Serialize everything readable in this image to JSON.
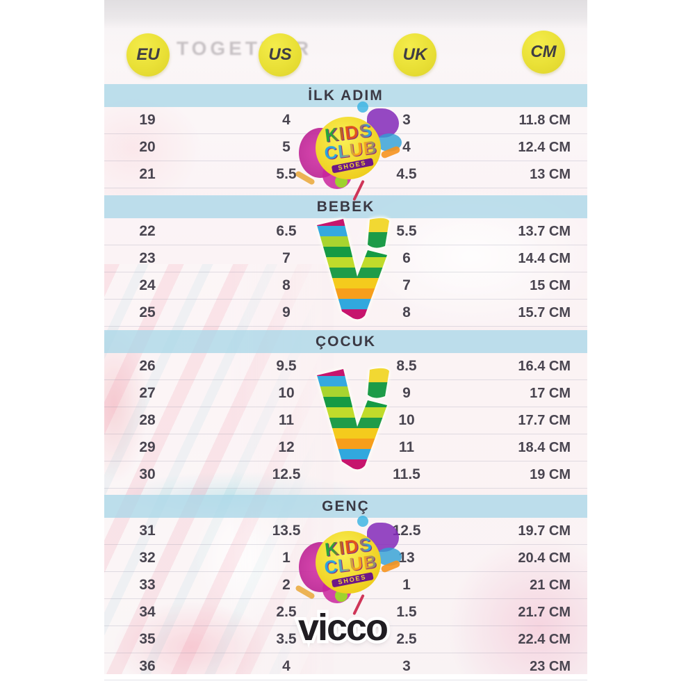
{
  "photo": {
    "background_text": "TOGETHER"
  },
  "table": {
    "columns": [
      "EU",
      "US",
      "UK",
      "CM"
    ],
    "sections": [
      {
        "id": "ilk-adim",
        "label": "İLK ADIM",
        "rows": [
          [
            "19",
            "4",
            "3",
            "11.8 CM"
          ],
          [
            "20",
            "5",
            "4",
            "12.4 CM"
          ],
          [
            "21",
            "5.5",
            "4.5",
            "13 CM"
          ]
        ]
      },
      {
        "id": "bebek",
        "label": "BEBEK",
        "rows": [
          [
            "22",
            "6.5",
            "5.5",
            "13.7 CM"
          ],
          [
            "23",
            "7",
            "6",
            "14.4 CM"
          ],
          [
            "24",
            "8",
            "7",
            "15 CM"
          ],
          [
            "25",
            "9",
            "8",
            "15.7 CM"
          ]
        ]
      },
      {
        "id": "cocuk",
        "label": "ÇOCUK",
        "rows": [
          [
            "26",
            "9.5",
            "8.5",
            "16.4 CM"
          ],
          [
            "27",
            "10",
            "9",
            "17 CM"
          ],
          [
            "28",
            "11",
            "10",
            "17.7 CM"
          ],
          [
            "29",
            "12",
            "11",
            "18.4 CM"
          ],
          [
            "30",
            "12.5",
            "11.5",
            "19 CM"
          ]
        ]
      },
      {
        "id": "genc",
        "label": "GENÇ",
        "rows": [
          [
            "31",
            "13.5",
            "12.5",
            "19.7 CM"
          ],
          [
            "32",
            "1",
            "13",
            "20.4 CM"
          ],
          [
            "33",
            "2",
            "1",
            "21 CM"
          ],
          [
            "34",
            "2.5",
            "1.5",
            "21.7 CM"
          ],
          [
            "35",
            "3.5",
            "2.5",
            "22.4 CM"
          ],
          [
            "36",
            "4",
            "3",
            "23 CM"
          ]
        ]
      }
    ]
  },
  "logos": {
    "kids_club": {
      "line1": "KIDS",
      "line2": "CLUB",
      "line3": "SHOES"
    },
    "vicco_wordmark": "vicco"
  },
  "colors": {
    "circle_yellow": "#e9e137",
    "band_blue": "#b9dcea",
    "text_dark": "#494550",
    "photo_pink": "#f7e3e7"
  }
}
